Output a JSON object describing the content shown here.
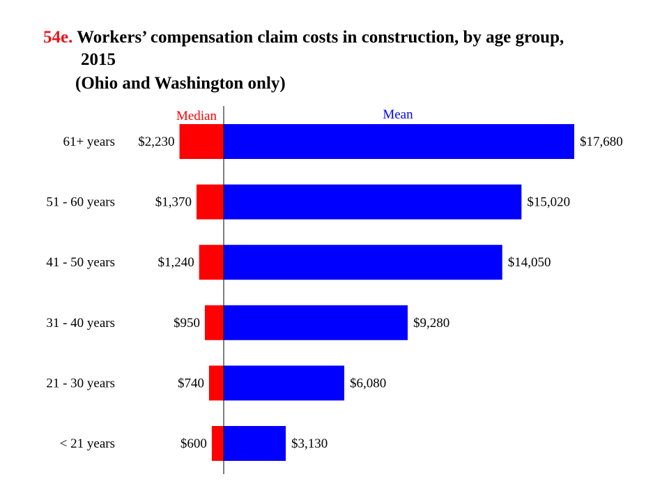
{
  "chart_data": {
    "type": "bar",
    "orientation": "horizontal-diverging",
    "title_number": "54e.",
    "title": "Workers’ compensation claim costs in construction, by age group,",
    "title_year": "2015",
    "subtitle": "(Ohio and Washington only)",
    "categories": [
      "61+ years",
      "51 - 60 years",
      "41 - 50 years",
      "31 - 40 years",
      "21 - 30 years",
      "< 21 years"
    ],
    "series": [
      {
        "name": "Median",
        "color": "#ff0000",
        "direction": "left",
        "values": [
          2230,
          1370,
          1240,
          950,
          740,
          600
        ],
        "labels": [
          "$2,230",
          "$1,370",
          "$1,240",
          "$950",
          "$740",
          "$600"
        ]
      },
      {
        "name": "Mean",
        "color": "#0000ff",
        "direction": "right",
        "values": [
          17680,
          15020,
          14050,
          9280,
          6080,
          3130
        ],
        "labels": [
          "$17,680",
          "$15,020",
          "$14,050",
          "$9,280",
          "$6,080",
          "$3,130"
        ]
      }
    ],
    "grid": false,
    "legend_placement": "top"
  }
}
